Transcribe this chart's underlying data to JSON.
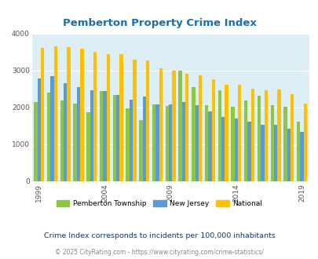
{
  "title": "Pemberton Property Crime Index",
  "years": [
    1999,
    2000,
    2001,
    2002,
    2003,
    2004,
    2005,
    2006,
    2007,
    2008,
    2009,
    2010,
    2011,
    2012,
    2013,
    2014,
    2015,
    2016,
    2017,
    2018,
    2019
  ],
  "pemberton": [
    2150,
    2400,
    2200,
    2100,
    1880,
    2450,
    2340,
    1970,
    1650,
    2090,
    2040,
    2990,
    2550,
    2060,
    2460,
    2020,
    2190,
    2310,
    2060,
    2010,
    1620
  ],
  "new_jersey": [
    2780,
    2840,
    2660,
    2560,
    2460,
    2450,
    2340,
    2220,
    2300,
    2090,
    2090,
    2140,
    2060,
    1890,
    1740,
    1710,
    1620,
    1540,
    1530,
    1420,
    1330
  ],
  "national": [
    3620,
    3660,
    3630,
    3600,
    3510,
    3440,
    3450,
    3290,
    3280,
    3060,
    2990,
    2920,
    2870,
    2760,
    2620,
    2610,
    2500,
    2470,
    2490,
    2370,
    2110
  ],
  "color_pemberton": "#8dc63f",
  "color_nj": "#5b9bd5",
  "color_national": "#ffc000",
  "bg_color": "#deeef6",
  "title_color": "#1a6faf",
  "ylim": [
    0,
    4000
  ],
  "yticks": [
    0,
    1000,
    2000,
    3000,
    4000
  ],
  "subtitle": "Crime Index corresponds to incidents per 100,000 inhabitants",
  "footer": "© 2025 CityRating.com - https://www.cityrating.com/crime-statistics/",
  "subtitle_color": "#1a3a5c",
  "footer_color": "#888888"
}
